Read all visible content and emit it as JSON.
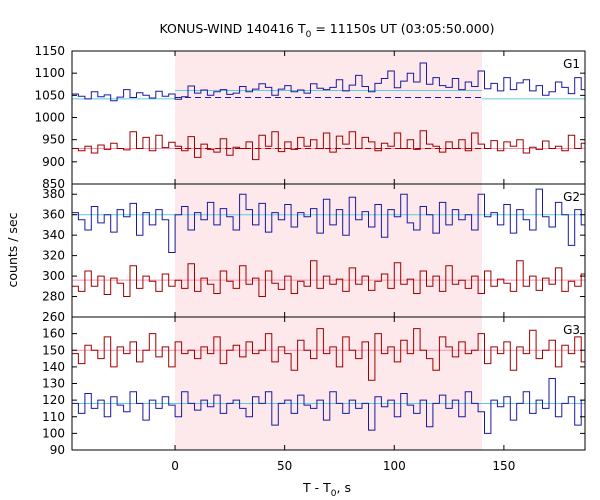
{
  "chart_data": {
    "type": "line",
    "title": "KONUS-WIND 140416 T",
    "title_sub": "0",
    "title_rest": " = 11150s UT (03:05:50.000)",
    "xlabel": "T - T",
    "xlabel_sub": "0",
    "xlabel_rest": ", s",
    "ylabel": "counts / sec",
    "xlim": [
      -47,
      187
    ],
    "xticks": [
      0,
      50,
      100,
      150
    ],
    "xtick_labels": [
      "0",
      "50",
      "100",
      "150"
    ],
    "shaded_interval": [
      0,
      140
    ],
    "colors": {
      "blue": "#1a1aa0",
      "red": "#a00000",
      "cyan": "#5fc8e6",
      "pink": "#ff8caa",
      "shade": "#fde8ec"
    },
    "panels": [
      {
        "name": "G1",
        "ylim": [
          850,
          1150
        ],
        "yticks": [
          850,
          900,
          950,
          1000,
          1050,
          1100,
          1150
        ],
        "ytick_labels": [
          "850",
          "900",
          "950",
          "1000",
          "1050",
          "1100",
          "1150"
        ],
        "series": [
          {
            "color": "blue",
            "step": 2.94,
            "x0": -47,
            "values": [
              1053,
              1048,
              1042,
              1058,
              1047,
              1051,
              1038,
              1046,
              1063,
              1045,
              1056,
              1050,
              1044,
              1059,
              1048,
              1053,
              1041,
              1047,
              1071,
              1055,
              1062,
              1050,
              1058,
              1063,
              1052,
              1055,
              1070,
              1058,
              1064,
              1076,
              1068,
              1050,
              1064,
              1072,
              1058,
              1062,
              1055,
              1076,
              1066,
              1063,
              1068,
              1085,
              1060,
              1073,
              1095,
              1070,
              1058,
              1077,
              1088,
              1105,
              1067,
              1082,
              1100,
              1080,
              1123,
              1075,
              1090,
              1072,
              1068,
              1088,
              1063,
              1080,
              1070,
              1105,
              1065,
              1077,
              1060,
              1090,
              1063,
              1078,
              1085,
              1060,
              1072,
              1050,
              1058,
              1080,
              1068,
              1054,
              1090,
              1063,
              1078,
              1065,
              1070,
              1047,
              1075,
              1055,
              1083,
              1050,
              1065,
              1072,
              1058,
              1085,
              1068,
              1062,
              1072,
              1100,
              1065,
              1055,
              1068,
              1050,
              1042,
              1053,
              1048,
              1062,
              1040,
              1057,
              1067,
              1045,
              1053,
              1038,
              1060,
              1043,
              1055,
              1046,
              1050,
              1033,
              1058,
              1045,
              1063,
              1040,
              1052,
              1048,
              1065,
              1037,
              1055,
              1043,
              1050
            ]
          },
          {
            "color": "red",
            "step": 2.94,
            "x0": -47,
            "values": [
              930,
              925,
              935,
              920,
              938,
              928,
              942,
              930,
              927,
              968,
              930,
              955,
              925,
              960,
              932,
              944,
              935,
              925,
              957,
              910,
              940,
              928,
              922,
              952,
              915,
              933,
              930,
              945,
              905,
              960,
              935,
              968,
              923,
              945,
              928,
              955,
              935,
              950,
              930,
              965,
              922,
              958,
              940,
              968,
              930,
              955,
              945,
              925,
              942,
              935,
              965,
              930,
              950,
              928,
              970,
              940,
              935,
              922,
              945,
              930,
              950,
              925,
              965,
              940,
              930,
              948,
              925,
              945,
              935,
              950,
              920,
              933,
              928,
              947,
              930,
              935,
              925,
              960,
              930,
              942,
              922,
              935,
              930,
              948,
              926,
              933,
              940,
              925,
              938,
              930,
              946,
              920,
              936,
              928,
              950,
              925,
              940,
              930,
              918,
              935,
              928,
              945,
              922,
              938,
              930,
              925,
              940,
              928,
              933,
              920,
              945,
              930,
              928,
              938,
              925,
              935,
              930,
              927,
              932,
              925,
              930,
              940,
              928,
              935,
              925,
              930
            ]
          }
        ],
        "background_levels": [
          {
            "color": "cyan",
            "segments": [
              {
                "x": [
                  -47,
                  0
                ],
                "y": 1042
              },
              {
                "x": [
                  0,
                  140
                ],
                "y": 1061
              },
              {
                "x": [
                  140,
                  187
                ],
                "y": 1042
              }
            ]
          },
          {
            "color": "pink",
            "segments": [
              {
                "x": [
                  -47,
                  187
                ],
                "y": 930
              }
            ]
          }
        ],
        "dashed_levels": [
          {
            "color": "blue",
            "x": [
              0,
              140
            ],
            "y": 1045
          },
          {
            "color": "red",
            "x": [
              0,
              140
            ],
            "y": 930
          }
        ]
      },
      {
        "name": "G2",
        "ylim": [
          260,
          390
        ],
        "yticks": [
          260,
          280,
          300,
          320,
          340,
          360,
          380
        ],
        "ytick_labels": [
          "260",
          "280",
          "300",
          "320",
          "340",
          "360",
          "380"
        ],
        "series": [
          {
            "color": "blue",
            "step": 2.94,
            "x0": -47,
            "values": [
              362,
              355,
              345,
              368,
              352,
              360,
              343,
              365,
              358,
              371,
              340,
              362,
              350,
              365,
              355,
              323,
              360,
              368,
              345,
              362,
              355,
              372,
              350,
              366,
              358,
              345,
              380,
              365,
              350,
              371,
              343,
              362,
              355,
              370,
              348,
              362,
              358,
              366,
              342,
              375,
              350,
              365,
              340,
              377,
              355,
              363,
              348,
              370,
              338,
              365,
              358,
              380,
              352,
              345,
              368,
              360,
              342,
              372,
              350,
              365,
              355,
              360,
              345,
              380,
              358,
              362,
              350,
              370,
              342,
              365,
              355,
              345,
              385,
              358,
              348,
              372,
              360,
              330,
              365,
              350,
              378,
              355,
              340,
              370,
              360,
              352,
              366,
              345,
              372,
              358,
              350,
              362,
              345,
              370,
              355,
              342,
              377,
              360,
              352,
              348,
              365,
              358,
              340,
              372,
              360,
              355,
              350,
              365,
              345,
              370,
              358,
              362,
              340,
              375,
              355,
              360,
              348,
              368,
              350,
              362,
              357,
              364,
              350,
              360,
              345,
              365,
              355
            ]
          },
          {
            "color": "red",
            "step": 2.94,
            "x0": -47,
            "values": [
              290,
              285,
              305,
              290,
              300,
              282,
              298,
              293,
              280,
              310,
              288,
              300,
              295,
              285,
              302,
              290,
              296,
              288,
              312,
              285,
              298,
              292,
              283,
              305,
              295,
              288,
              310,
              292,
              298,
              280,
              305,
              293,
              287,
              300,
              283,
              295,
              290,
              315,
              288,
              300,
              292,
              297,
              285,
              308,
              292,
              300,
              286,
              295,
              302,
              288,
              313,
              292,
              297,
              283,
              305,
              290,
              300,
              285,
              310,
              292,
              296,
              288,
              300,
              283,
              305,
              290,
              297,
              293,
              285,
              315,
              290,
              300,
              286,
              298,
              292,
              308,
              285,
              295,
              290,
              302,
              283,
              322,
              292,
              300,
              288,
              312,
              285,
              297,
              292,
              300,
              290,
              285,
              305,
              293,
              298,
              288,
              302,
              290,
              296,
              285,
              300,
              292,
              288,
              305,
              290,
              296,
              292,
              300,
              288,
              310,
              292,
              296,
              285,
              300,
              292,
              305,
              290,
              298,
              295,
              286,
              302,
              290,
              312,
              288,
              296,
              300,
              293
            ]
          }
        ],
        "background_levels": [
          {
            "color": "cyan",
            "segments": [
              {
                "x": [
                  -47,
                  187
                ],
                "y": 360
              }
            ]
          },
          {
            "color": "pink",
            "segments": [
              {
                "x": [
                  -47,
                  187
                ],
                "y": 296
              }
            ]
          }
        ],
        "dashed_levels": []
      },
      {
        "name": "G3",
        "ylim": [
          90,
          170
        ],
        "yticks": [
          90,
          100,
          110,
          120,
          130,
          140,
          150,
          160
        ],
        "ytick_labels": [
          "90",
          "100",
          "110",
          "120",
          "130",
          "140",
          "150",
          "160"
        ],
        "series": [
          {
            "color": "red",
            "step": 2.94,
            "x0": -47,
            "values": [
              148,
              142,
              153,
              150,
              145,
              158,
              140,
              152,
              148,
              155,
              143,
              150,
              160,
              146,
              152,
              140,
              155,
              148,
              150,
              145,
              152,
              148,
              158,
              142,
              150,
              153,
              146,
              155,
              148,
              150,
              160,
              143,
              152,
              148,
              138,
              156,
              150,
              145,
              163,
              148,
              152,
              140,
              158,
              150,
              145,
              155,
              132,
              160,
              148,
              152,
              143,
              156,
              148,
              163,
              150,
              145,
              138,
              158,
              152,
              146,
              155,
              148,
              150,
              160,
              142,
              152,
              148,
              155,
              138,
              152,
              148,
              162,
              145,
              150,
              156,
              140,
              153,
              148,
              158,
              143,
              150,
              152,
              145,
              160,
              148,
              155,
              140,
              153,
              150,
              148,
              163,
              145,
              152,
              135,
              155,
              150,
              145,
              160,
              148,
              152,
              138,
              156,
              150,
              148,
              158,
              143,
              152,
              148,
              155,
              150,
              145,
              160,
              148,
              152,
              140,
              156,
              148,
              152,
              145,
              155,
              150,
              148,
              158,
              150,
              152,
              145,
              155
            ]
          },
          {
            "color": "blue",
            "step": 2.94,
            "x0": -47,
            "values": [
              118,
              112,
              124,
              115,
              120,
              110,
              122,
              117,
              113,
              125,
              118,
              108,
              120,
              115,
              122,
              117,
              110,
              125,
              118,
              114,
              120,
              116,
              123,
              112,
              118,
              120,
              115,
              110,
              122,
              118,
              125,
              105,
              118,
              120,
              112,
              123,
              117,
              115,
              120,
              108,
              125,
              118,
              112,
              120,
              115,
              118,
              102,
              122,
              116,
              120,
              110,
              124,
              117,
              112,
              120,
              104,
              118,
              123,
              115,
              120,
              110,
              125,
              118,
              113,
              100,
              120,
              116,
              122,
              108,
              118,
              125,
              112,
              120,
              115,
              133,
              110,
              118,
              122,
              105,
              120,
              115,
              117,
              125,
              110,
              120,
              118,
              103,
              122,
              115,
              118,
              120,
              110,
              124,
              117,
              113,
              120,
              116,
              122,
              108,
              118,
              120,
              115,
              125,
              112,
              118,
              120,
              110,
              122,
              117,
              100,
              120,
              115,
              125,
              118,
              112,
              120,
              105,
              118,
              122,
              115,
              120,
              130,
              110,
              118,
              123,
              102,
              118
            ]
          }
        ],
        "background_levels": [
          {
            "color": "pink",
            "segments": [
              {
                "x": [
                  -47,
                  187
                ],
                "y": 150
              }
            ]
          },
          {
            "color": "cyan",
            "segments": [
              {
                "x": [
                  -47,
                  187
                ],
                "y": 118
              }
            ]
          }
        ],
        "dashed_levels": []
      }
    ]
  }
}
